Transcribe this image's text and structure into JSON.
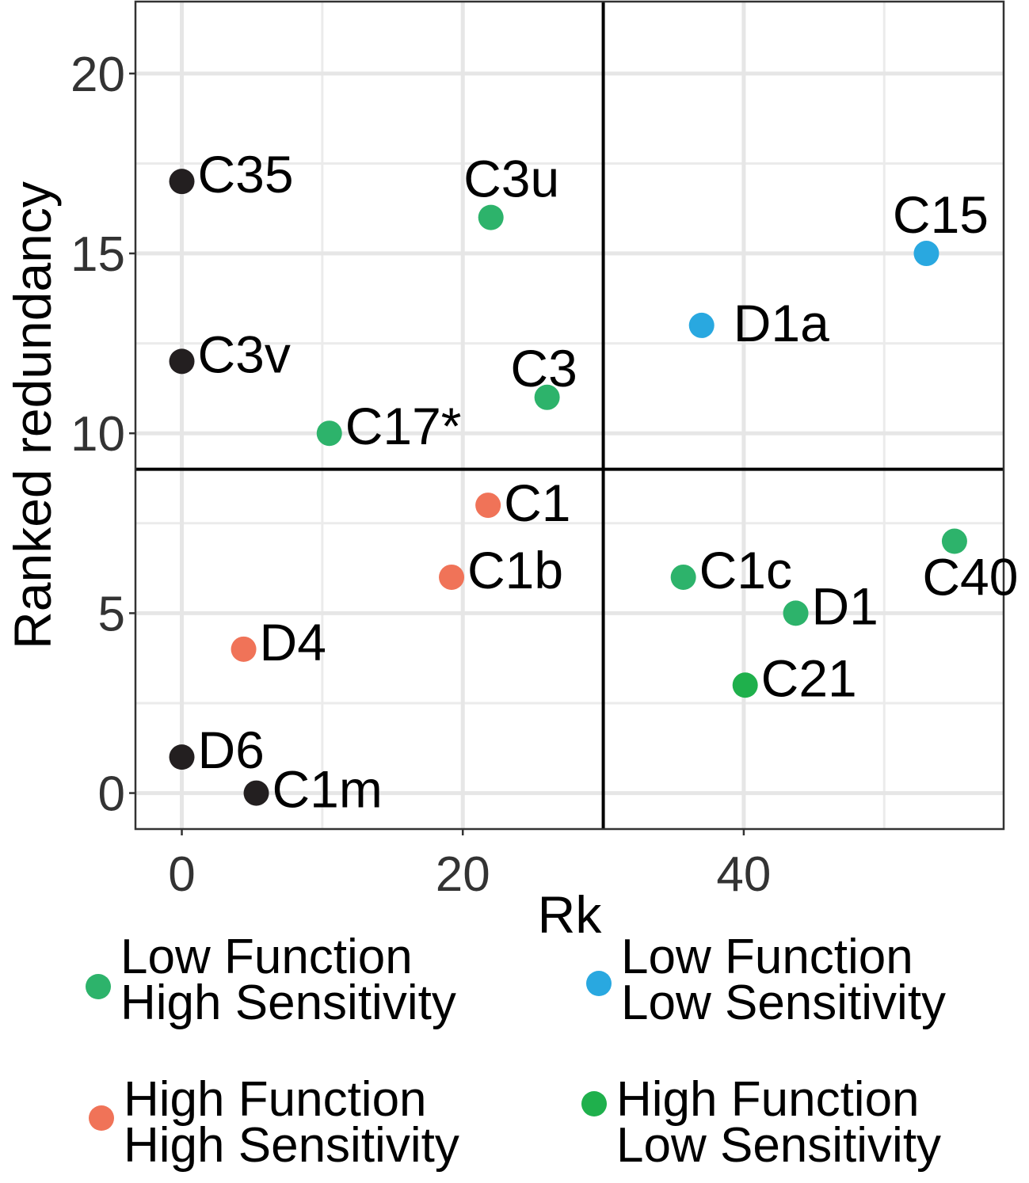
{
  "chart_data": {
    "type": "scatter",
    "xlabel": "Rk",
    "ylabel": "Ranked redundancy",
    "xlim": [
      -3.3,
      58.5
    ],
    "ylim": [
      -1,
      22
    ],
    "x_ticks": [
      0,
      20,
      40
    ],
    "y_ticks": [
      0,
      5,
      10,
      15,
      20
    ],
    "x_tick_labels": [
      "0",
      "20",
      "40"
    ],
    "y_tick_labels": [
      "0",
      "5",
      "10",
      "15",
      "20"
    ],
    "reference_lines": {
      "x": 30,
      "y": 9
    },
    "grid": true,
    "colors": {
      "LFHS": "#2db36b",
      "LFLS": "#29a8e0",
      "HFHS": "#f07358",
      "HFLS": "#1fb04c",
      "none": "#231f20"
    },
    "points": [
      {
        "label": "C35",
        "x": 0,
        "y": 17,
        "group": "none"
      },
      {
        "label": "C3u",
        "x": 22,
        "y": 16,
        "group": "LFHS"
      },
      {
        "label": "C15",
        "x": 53,
        "y": 15,
        "group": "LFLS"
      },
      {
        "label": "D1a",
        "x": 37,
        "y": 13,
        "group": "LFLS"
      },
      {
        "label": "C3v",
        "x": 0,
        "y": 12,
        "group": "none"
      },
      {
        "label": "C3",
        "x": 26,
        "y": 11,
        "group": "LFHS"
      },
      {
        "label": "C17*",
        "x": 10.5,
        "y": 10,
        "group": "LFHS"
      },
      {
        "label": "C1",
        "x": 21.8,
        "y": 8,
        "group": "HFHS"
      },
      {
        "label": "C40",
        "x": 55,
        "y": 7,
        "group": "LFHS"
      },
      {
        "label": "C1b",
        "x": 19.2,
        "y": 6,
        "group": "HFHS"
      },
      {
        "label": "C1c",
        "x": 35.7,
        "y": 6,
        "group": "LFHS"
      },
      {
        "label": "D1",
        "x": 43.7,
        "y": 5,
        "group": "LFHS"
      },
      {
        "label": "D4",
        "x": 4.4,
        "y": 4,
        "group": "HFHS"
      },
      {
        "label": "C21",
        "x": 40.1,
        "y": 3,
        "group": "HFLS"
      },
      {
        "label": "D6",
        "x": 0,
        "y": 1,
        "group": "none"
      },
      {
        "label": "C1m",
        "x": 5.3,
        "y": 0,
        "group": "none"
      }
    ],
    "legend": [
      {
        "key": "LFHS",
        "line1": "Low Function",
        "line2": "High Sensitivity"
      },
      {
        "key": "LFLS",
        "line1": "Low Function",
        "line2": "Low Sensitivity"
      },
      {
        "key": "HFHS",
        "line1": "High Function",
        "line2": "High Sensitivity"
      },
      {
        "key": "HFLS",
        "line1": "High Function",
        "line2": "Low Sensitivity"
      }
    ]
  }
}
